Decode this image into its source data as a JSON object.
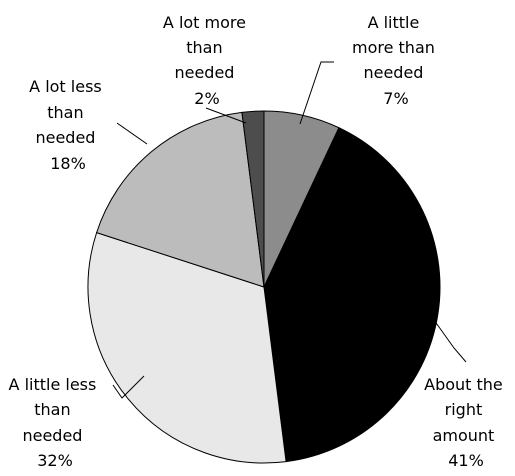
{
  "chart_data": {
    "type": "pie",
    "title": "",
    "start_angle_deg": 0,
    "direction": "clockwise",
    "slices": [
      {
        "label": "A little more than needed",
        "value": 7,
        "value_label": "7%",
        "color": "#8c8c8c"
      },
      {
        "label": "About the right amount",
        "value": 41,
        "value_label": "41%",
        "color": "#000000"
      },
      {
        "label": "A little less than needed",
        "value": 32,
        "value_label": "32%",
        "color": "#e8e8e8"
      },
      {
        "label": "A lot less than needed",
        "value": 18,
        "value_label": "18%",
        "color": "#bcbcbc"
      },
      {
        "label": "A lot more than needed",
        "value": 2,
        "value_label": "2%",
        "color": "#4d4d4d"
      }
    ]
  }
}
